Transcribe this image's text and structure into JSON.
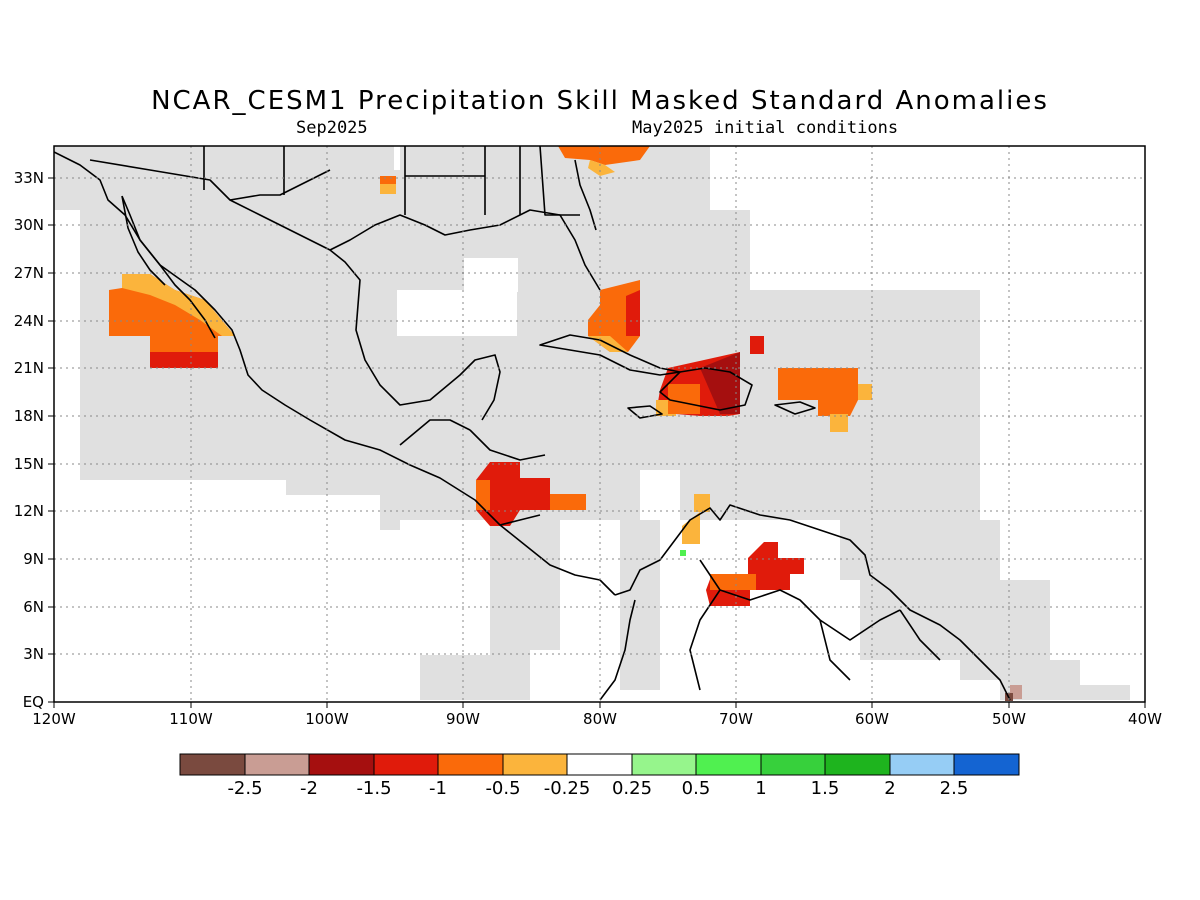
{
  "header": {
    "title": "NCAR_CESM1 Precipitation Skill Masked Standard Anomalies",
    "target_month": "Sep2025",
    "initial_conditions": "May2025 initial conditions"
  },
  "map": {
    "lon_range": [
      -120,
      -40
    ],
    "lat_range": [
      0,
      35
    ],
    "lon_ticks": [
      "120W",
      "110W",
      "100W",
      "90W",
      "80W",
      "70W",
      "60W",
      "50W",
      "40W"
    ],
    "lat_ticks": [
      "EQ",
      "3N",
      "6N",
      "9N",
      "12N",
      "15N",
      "18N",
      "21N",
      "24N",
      "27N",
      "30N",
      "33N"
    ],
    "mask_color": "#e0e0e0",
    "grid": "dotted"
  },
  "colorbar": {
    "labels": [
      "-2.5",
      "-2",
      "-1.5",
      "-1",
      "-0.5",
      "-0.25",
      "0.25",
      "0.5",
      "1",
      "1.5",
      "2",
      "2.5"
    ],
    "colors": [
      "#7a4a3f",
      "#c99d94",
      "#a50f0f",
      "#e01b0b",
      "#fa6a0a",
      "#fbb43c",
      "#ffffff",
      "#96f58c",
      "#50f050",
      "#37d03c",
      "#1eb41e",
      "#96cdf5",
      "#1464d2"
    ]
  }
}
